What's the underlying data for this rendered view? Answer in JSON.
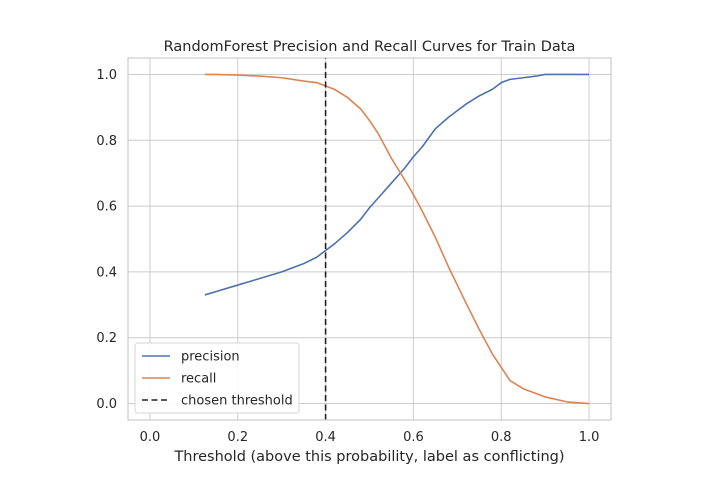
{
  "chart_data": {
    "type": "line",
    "title": "RandomForest Precision and Recall Curves for Train Data",
    "xlabel": "Threshold (above this probability, label as conflicting)",
    "ylabel": "",
    "xlim": [
      -0.05,
      1.05
    ],
    "ylim": [
      -0.05,
      1.05
    ],
    "xticks": [
      "0.0",
      "0.2",
      "0.4",
      "0.6",
      "0.8",
      "1.0"
    ],
    "yticks": [
      "0.0",
      "0.2",
      "0.4",
      "0.6",
      "0.8",
      "1.0"
    ],
    "grid": true,
    "legend_position": "lower-left",
    "series": [
      {
        "name": "precision",
        "color": "#4c72b0",
        "x": [
          0.125,
          0.15,
          0.2,
          0.25,
          0.3,
          0.35,
          0.38,
          0.4,
          0.42,
          0.45,
          0.48,
          0.5,
          0.52,
          0.55,
          0.58,
          0.6,
          0.62,
          0.65,
          0.68,
          0.7,
          0.72,
          0.75,
          0.78,
          0.8,
          0.82,
          0.85,
          0.88,
          0.9,
          0.95,
          1.0
        ],
        "y": [
          0.33,
          0.34,
          0.36,
          0.38,
          0.4,
          0.425,
          0.445,
          0.465,
          0.485,
          0.52,
          0.56,
          0.595,
          0.625,
          0.67,
          0.715,
          0.75,
          0.78,
          0.835,
          0.87,
          0.89,
          0.91,
          0.935,
          0.955,
          0.975,
          0.985,
          0.99,
          0.995,
          1.0,
          1.0,
          1.0
        ]
      },
      {
        "name": "recall",
        "color": "#dd8452",
        "x": [
          0.125,
          0.15,
          0.2,
          0.25,
          0.3,
          0.35,
          0.38,
          0.4,
          0.42,
          0.45,
          0.48,
          0.5,
          0.52,
          0.55,
          0.58,
          0.6,
          0.62,
          0.65,
          0.68,
          0.7,
          0.72,
          0.75,
          0.78,
          0.8,
          0.82,
          0.85,
          0.88,
          0.9,
          0.95,
          1.0
        ],
        "y": [
          1.0,
          1.0,
          0.998,
          0.995,
          0.99,
          0.98,
          0.975,
          0.965,
          0.955,
          0.93,
          0.895,
          0.86,
          0.82,
          0.745,
          0.68,
          0.635,
          0.585,
          0.505,
          0.415,
          0.36,
          0.305,
          0.225,
          0.15,
          0.11,
          0.07,
          0.045,
          0.03,
          0.02,
          0.005,
          0.0
        ]
      },
      {
        "name": "chosen threshold",
        "color": "#222222",
        "style": "dashed",
        "x": [
          0.4,
          0.4
        ],
        "y": [
          -0.05,
          1.05
        ]
      }
    ]
  }
}
